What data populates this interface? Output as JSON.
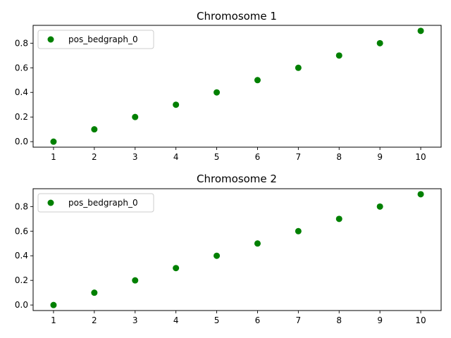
{
  "chart_data": [
    {
      "type": "scatter",
      "title": "Chromosome 1",
      "xlabel": "",
      "ylabel": "",
      "x": [
        1,
        2,
        3,
        4,
        5,
        6,
        7,
        8,
        9,
        10
      ],
      "xlim": [
        0.5,
        10.5
      ],
      "ylim": [
        -0.045,
        0.945
      ],
      "xticks": [
        "1",
        "2",
        "3",
        "4",
        "5",
        "6",
        "7",
        "8",
        "9",
        "10"
      ],
      "yticks": [
        "0.0",
        "0.2",
        "0.4",
        "0.6",
        "0.8"
      ],
      "grid": false,
      "legend": "upper-left",
      "series": [
        {
          "name": "pos_bedgraph_0",
          "color": "#008000",
          "marker": "circle",
          "y": [
            0.0,
            0.1,
            0.2,
            0.3,
            0.4,
            0.5,
            0.6,
            0.7,
            0.8,
            0.9
          ]
        }
      ]
    },
    {
      "type": "scatter",
      "title": "Chromosome 2",
      "xlabel": "",
      "ylabel": "",
      "x": [
        1,
        2,
        3,
        4,
        5,
        6,
        7,
        8,
        9,
        10
      ],
      "xlim": [
        0.5,
        10.5
      ],
      "ylim": [
        -0.045,
        0.945
      ],
      "xticks": [
        "1",
        "2",
        "3",
        "4",
        "5",
        "6",
        "7",
        "8",
        "9",
        "10"
      ],
      "yticks": [
        "0.0",
        "0.2",
        "0.4",
        "0.6",
        "0.8"
      ],
      "grid": false,
      "legend": "upper-left",
      "series": [
        {
          "name": "pos_bedgraph_0",
          "color": "#008000",
          "marker": "circle",
          "y": [
            0.0,
            0.1,
            0.2,
            0.3,
            0.4,
            0.5,
            0.6,
            0.7,
            0.8,
            0.9
          ]
        }
      ]
    }
  ]
}
